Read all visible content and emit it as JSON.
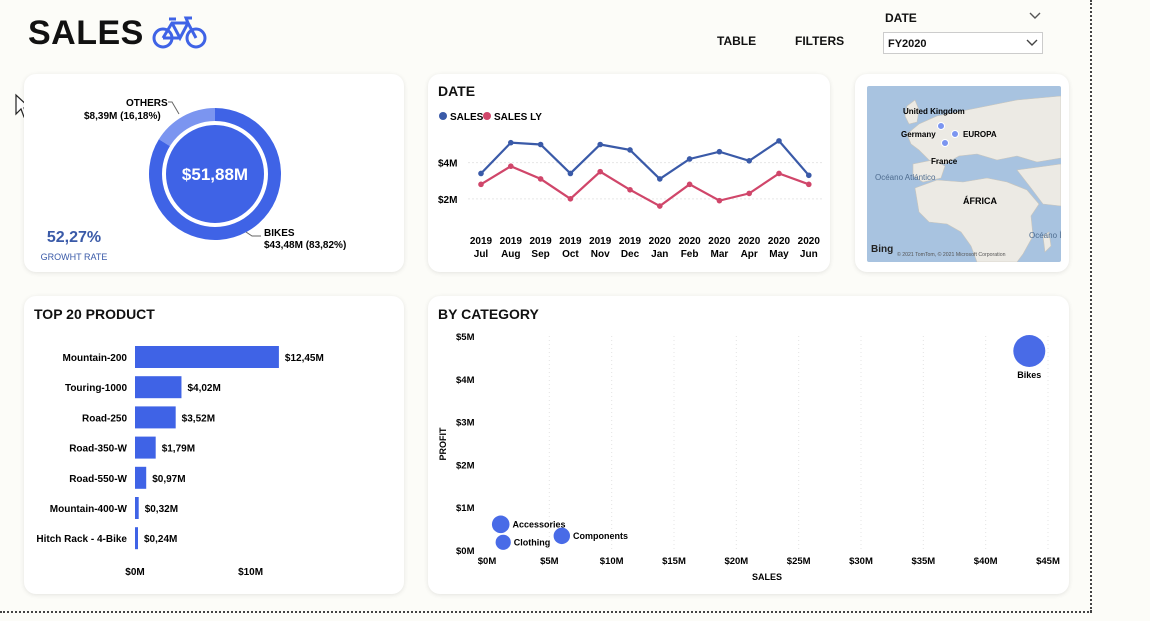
{
  "header": {
    "title": "SALES",
    "table_label": "TABLE",
    "filters_label": "FILTERS",
    "date_filter_label": "DATE",
    "date_filter_value": "FY2020"
  },
  "donut": {
    "center_value": "$51,88M",
    "others_label": "OTHERS",
    "others_value": "$8,39M (16,18%)",
    "bikes_label": "BIKES",
    "bikes_value": "$43,48M (83,82%)",
    "growth_value": "52,27%",
    "growth_label": "GROWHT RATE",
    "slices": [
      {
        "name": "OTHERS",
        "value": 8.39,
        "color": "#7b95f0"
      },
      {
        "name": "BIKES",
        "value": 43.48,
        "color": "#3f63e6"
      }
    ]
  },
  "line_card": {
    "title": "DATE"
  },
  "map": {
    "labels": [
      "United Kingdom",
      "Germany",
      "EUROPA",
      "France",
      "Océano Atlántico",
      "ÁFRICA",
      "Océano Índico"
    ],
    "attribution": "© 2021 TomTom, © 2021 Microsoft Corporation",
    "logo": "Bing"
  },
  "top_product": {
    "title": "TOP 20 PRODUCT"
  },
  "category": {
    "title": "BY CATEGORY"
  },
  "colors": {
    "primary": "#3f63e6",
    "line_sales": "#3a5aa8",
    "line_ly": "#d0466a"
  },
  "chart_data": [
    {
      "type": "line",
      "title": "DATE",
      "x": [
        "2019 Jul",
        "2019 Aug",
        "2019 Sep",
        "2019 Oct",
        "2019 Nov",
        "2019 Dec",
        "2020 Jan",
        "2020 Feb",
        "2020 Mar",
        "2020 Apr",
        "2020 May",
        "2020 Jun"
      ],
      "x_year": [
        "2019",
        "2019",
        "2019",
        "2019",
        "2019",
        "2019",
        "2020",
        "2020",
        "2020",
        "2020",
        "2020",
        "2020"
      ],
      "x_month": [
        "Jul",
        "Aug",
        "Sep",
        "Oct",
        "Nov",
        "Dec",
        "Jan",
        "Feb",
        "Mar",
        "Apr",
        "May",
        "Jun"
      ],
      "series": [
        {
          "name": "SALES",
          "values": [
            3.4,
            5.1,
            5.0,
            3.4,
            5.0,
            4.7,
            3.1,
            4.2,
            4.6,
            4.1,
            5.2,
            3.3
          ]
        },
        {
          "name": "SALES LY",
          "values": [
            2.8,
            3.8,
            3.1,
            2.0,
            3.5,
            2.5,
            1.6,
            2.8,
            1.9,
            2.3,
            3.4,
            2.8
          ]
        }
      ],
      "ytick_labels": [
        "$2M",
        "$4M"
      ],
      "yticks": [
        2,
        4
      ],
      "ylim": [
        0.5,
        5.8
      ],
      "legend": "top-left"
    },
    {
      "type": "bar",
      "orientation": "horizontal",
      "title": "TOP 20 PRODUCT",
      "categories": [
        "Mountain-200",
        "Touring-1000",
        "Road-250",
        "Road-350-W",
        "Road-550-W",
        "Mountain-400-W",
        "Hitch Rack - 4-Bike"
      ],
      "values": [
        12.45,
        4.02,
        3.52,
        1.79,
        0.97,
        0.32,
        0.24
      ],
      "data_labels": [
        "$12,45M",
        "$4,02M",
        "$3,52M",
        "$1,79M",
        "$0,97M",
        "$0,32M",
        "$0,24M"
      ],
      "xtick_labels": [
        "$0M",
        "$10M"
      ],
      "xticks": [
        0,
        10
      ],
      "xlim": [
        0,
        15.4
      ]
    },
    {
      "type": "scatter",
      "title": "BY CATEGORY",
      "xlabel": "SALES",
      "ylabel": "PROFIT",
      "points": [
        {
          "name": "Bikes",
          "x": 43.5,
          "y": 4.65,
          "size": 1
        },
        {
          "name": "Accessories",
          "x": 1.1,
          "y": 0.6,
          "size": 0.4
        },
        {
          "name": "Clothing",
          "x": 1.3,
          "y": 0.18,
          "size": 0.3
        },
        {
          "name": "Components",
          "x": 6.0,
          "y": 0.33,
          "size": 0.35
        }
      ],
      "xticks": [
        0,
        5,
        10,
        15,
        20,
        25,
        30,
        35,
        40,
        45
      ],
      "xtick_labels": [
        "$0M",
        "$5M",
        "$10M",
        "$15M",
        "$20M",
        "$25M",
        "$30M",
        "$35M",
        "$40M",
        "$45M"
      ],
      "yticks": [
        0,
        1,
        2,
        3,
        4,
        5
      ],
      "ytick_labels": [
        "$0M",
        "$1M",
        "$2M",
        "$3M",
        "$4M",
        "$5M"
      ],
      "xlim": [
        0,
        45
      ],
      "ylim": [
        0,
        5
      ]
    }
  ]
}
